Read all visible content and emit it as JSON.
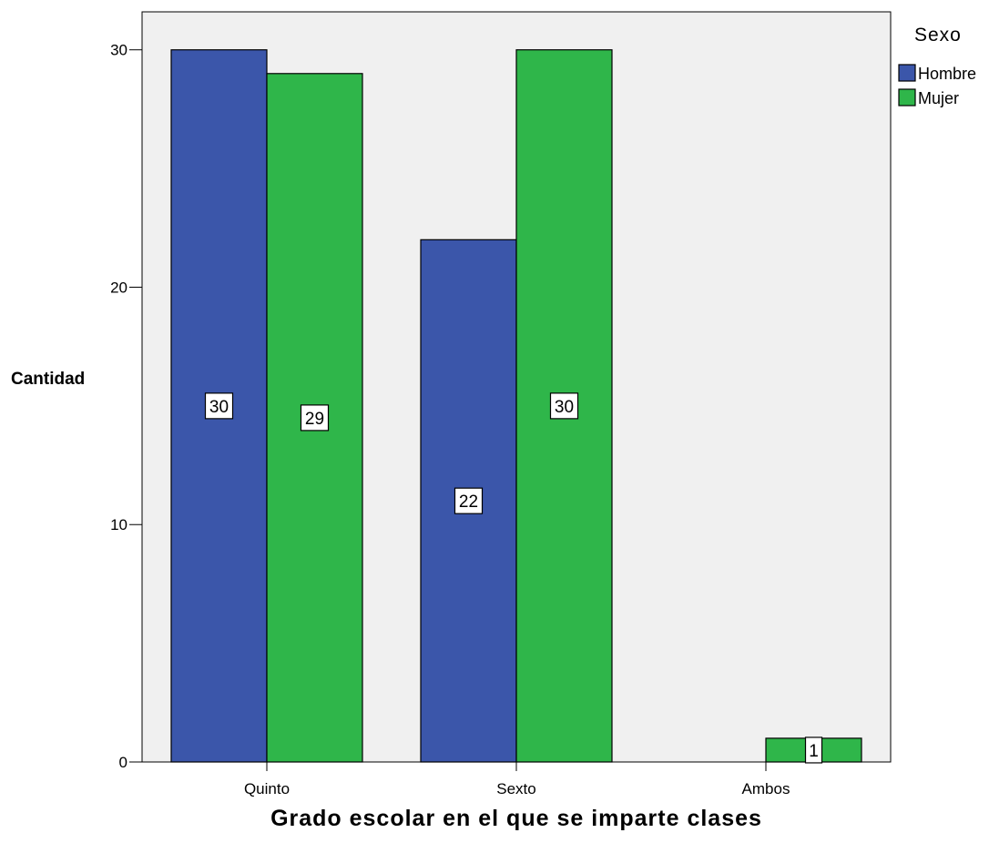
{
  "chart_data": {
    "type": "bar",
    "xlabel": "Grado escolar en el que se imparte clases",
    "ylabel": "Cantidad",
    "categories": [
      "Quinto",
      "Sexto",
      "Ambos"
    ],
    "legend_title": "Sexo",
    "legend_position": "top-right",
    "ylim": [
      0,
      31.6
    ],
    "yticks": [
      0,
      10,
      20,
      30
    ],
    "grid": false,
    "series": [
      {
        "name": "Hombre",
        "color": "#3b56aa",
        "values": [
          30,
          22,
          null
        ]
      },
      {
        "name": "Mujer",
        "color": "#2fb64a",
        "values": [
          29,
          30,
          1
        ]
      }
    ]
  }
}
